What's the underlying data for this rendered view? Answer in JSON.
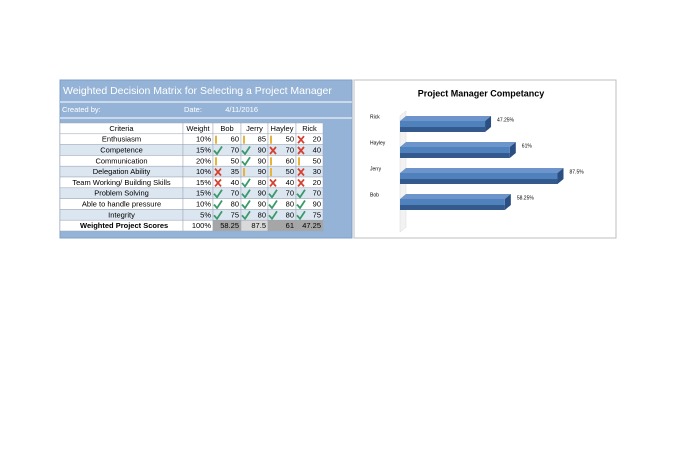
{
  "matrix": {
    "title": "Weighted Decision Matrix for Selecting a Project Manager",
    "created_by_label": "Created by:",
    "date_label": "Date:",
    "date": "4/11/2016"
  },
  "table": {
    "header": [
      "Criteria",
      "Weight",
      "Bob",
      "Jerry",
      "Hayley",
      "Rick"
    ],
    "rows": [
      [
        "Enthusiasm",
        "10%",
        "60",
        "85",
        "50",
        "20"
      ],
      [
        "Competence",
        "15%",
        "70",
        "90",
        "70",
        "40"
      ],
      [
        "Communication",
        "20%",
        "50",
        "90",
        "60",
        "50"
      ],
      [
        "Delegation Ability",
        "10%",
        "35",
        "90",
        "50",
        "30"
      ],
      [
        "Team Working/ Building Skills",
        "15%",
        "40",
        "80",
        "40",
        "20"
      ],
      [
        "Problem Solving",
        "15%",
        "70",
        "90",
        "70",
        "70"
      ],
      [
        "Able to handle pressure",
        "10%",
        "80",
        "90",
        "80",
        "90"
      ],
      [
        "Integrity",
        "5%",
        "75",
        "80",
        "80",
        "75"
      ]
    ],
    "footer": [
      "Weighted Project Scores",
      "100%",
      "58.25",
      "87.5",
      "61",
      "47.25"
    ]
  },
  "chart_data": {
    "type": "bar",
    "orientation": "horizontal",
    "title": "Project Manager Competancy",
    "categories": [
      "Rick",
      "Hayley",
      "Jerry",
      "Bob"
    ],
    "values": [
      47.25,
      61,
      87.5,
      58.25
    ],
    "value_labels": [
      "47.25%",
      "61%",
      "87.5%",
      "58.25%"
    ],
    "color": "#4f81bd"
  }
}
